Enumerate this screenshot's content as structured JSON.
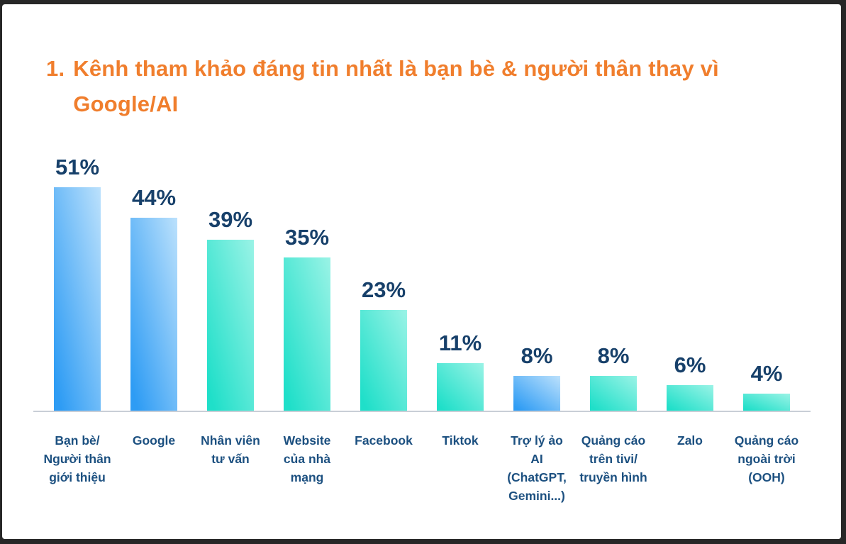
{
  "title": {
    "number": "1.",
    "line1": "Kênh tham khảo đáng tin nhất là bạn bè & người thân thay vì",
    "line2": "Google/AI",
    "full_text": "1. Kênh tham khảo đáng tin nhất là bạn bè & người thân thay vì Google/AI"
  },
  "colors": {
    "frame": "#272727",
    "card_background": "#FFFFFF",
    "title": "#F07E2D",
    "value_label": "#17406A",
    "category_label": "#1C5080",
    "axis_line": "#C9CED6",
    "bar_blue_main": "#2E9CF4",
    "bar_blue_light": "#BCE1FC",
    "bar_teal_main": "#1FDFC9",
    "bar_teal_light": "#9AF3E6"
  },
  "chart_data": {
    "type": "bar",
    "title": "1. Kênh tham khảo đáng tin nhất là bạn bè & người thân thay vì Google/AI",
    "categories": [
      "Bạn bè/ Người thân giới thiệu",
      "Google",
      "Nhân viên tư vấn",
      "Website của nhà mạng",
      "Facebook",
      "Tiktok",
      "Trợ lý ảo AI (ChatGPT, Gemini...)",
      "Quảng cáo trên tivi/ truyền hình",
      "Zalo",
      "Quảng cáo ngoài trời (OOH)"
    ],
    "category_lines": [
      [
        "Bạn bè/",
        "Người thân",
        "giới thiệu"
      ],
      [
        "Google"
      ],
      [
        "Nhân viên",
        "tư vấn"
      ],
      [
        "Website",
        "của nhà",
        "mạng"
      ],
      [
        "Facebook"
      ],
      [
        "Tiktok"
      ],
      [
        "Trợ lý ảo",
        "AI",
        "(ChatGPT,",
        "Gemini...)"
      ],
      [
        "Quảng cáo",
        "trên tivi/",
        "truyền hình"
      ],
      [
        "Zalo"
      ],
      [
        "Quảng cáo",
        "ngoài trời",
        "(OOH)"
      ]
    ],
    "values": [
      51,
      44,
      39,
      35,
      23,
      11,
      8,
      8,
      6,
      4
    ],
    "value_labels": [
      "51%",
      "44%",
      "39%",
      "35%",
      "23%",
      "11%",
      "8%",
      "8%",
      "6%",
      "4%"
    ],
    "bar_styles": [
      "blue",
      "blue",
      "teal",
      "teal",
      "teal",
      "teal",
      "blue",
      "teal",
      "teal",
      "teal"
    ],
    "unit": "%",
    "xlabel": "",
    "ylabel": "",
    "ylim": [
      0,
      55
    ],
    "grid": false,
    "legend": null
  }
}
